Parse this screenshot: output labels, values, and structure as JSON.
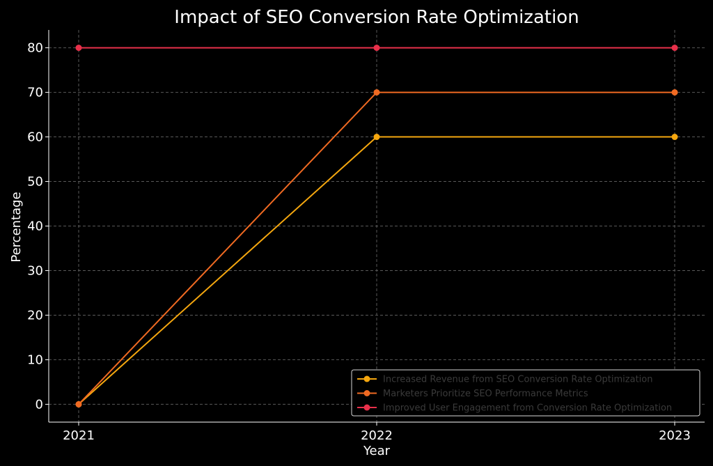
{
  "chart_data": {
    "type": "line",
    "title": "Impact of SEO Conversion Rate Optimization",
    "xlabel": "Year",
    "ylabel": "Percentage",
    "categories": [
      "2021",
      "2022",
      "2023"
    ],
    "yticks": [
      0,
      10,
      20,
      30,
      40,
      50,
      60,
      70,
      80
    ],
    "ylim": [
      -4,
      84
    ],
    "grid": true,
    "legend_position": "bottom-right",
    "series": [
      {
        "name": "Increased Revenue from SEO Conversion Rate Optimization",
        "values": [
          0,
          60,
          60
        ],
        "color": "#f5a70f"
      },
      {
        "name": "Marketers Prioritize SEO Performance Metrics",
        "values": [
          0,
          70,
          70
        ],
        "color": "#f06a22"
      },
      {
        "name": "Improved User Engagement from Conversion Rate Optimization",
        "values": [
          80,
          80,
          80
        ],
        "color": "#e8304a"
      }
    ]
  }
}
